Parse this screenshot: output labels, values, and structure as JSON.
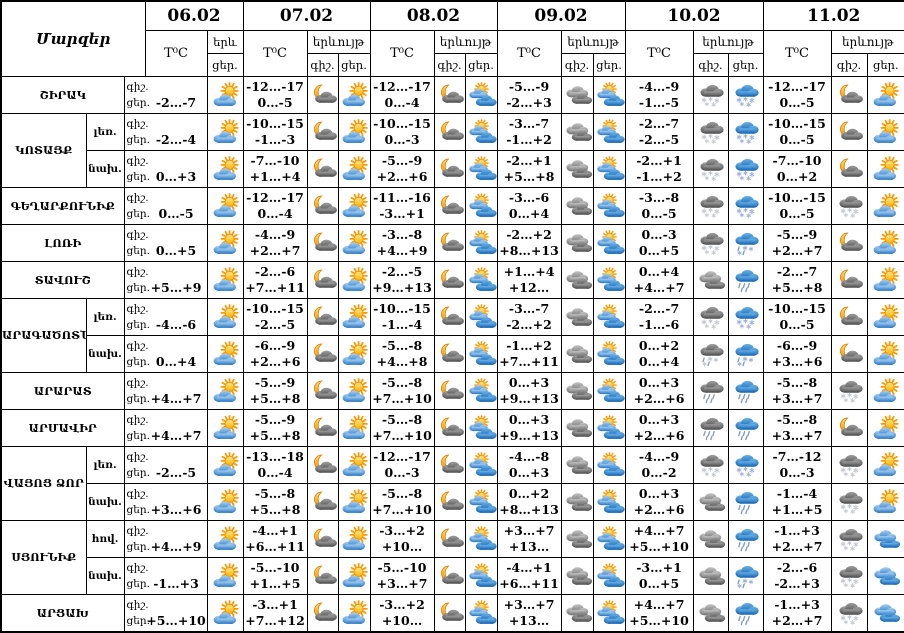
{
  "title": "Մարզեր",
  "header": {
    "temp_label": "T⁰C",
    "phenomenon_label": "երևույթ",
    "phenomenon_short": "երև",
    "night_label": "գիշ.",
    "day_label": "ցեր.",
    "dates": [
      "06.02",
      "07.02",
      "08.02",
      "09.02",
      "10.02",
      "11.02"
    ]
  },
  "colors": {
    "border": "#000000",
    "background": "#ffffff",
    "sun": "#ffb300",
    "moon": "#f29500",
    "day_cloud": "#2573c2",
    "night_cloud": "#474747"
  },
  "icon_types": {
    "sun-cloud": "sun behind blue cloud (partly cloudy day)",
    "sun-clouds": "sun with two blue clouds (mostly cloudy day)",
    "moon-cloud": "crescent moon behind dark cloud (partly cloudy night)",
    "clouds-gray": "overcast gray clouds (night)",
    "clouds-blue": "overcast blue clouds (day)",
    "snow-gray": "gray cloud with snow (night)",
    "snow-blue": "blue cloud with snow (day)",
    "rain-gray": "gray cloud with rain (night)",
    "rain-blue": "blue cloud with rain (day)",
    "sleet-gray": "gray cloud with rain and snow (night)",
    "sleet-blue": "blue cloud with rain and snow (day)"
  },
  "rows": [
    {
      "region": "ՇԻՐԱԿ",
      "sub": null,
      "span": 1,
      "cells": [
        {
          "n": "",
          "d": "-2…-7",
          "ni": null,
          "di": "sun-cloud"
        },
        {
          "n": "-12…-17",
          "d": "0…-5",
          "ni": "moon-cloud",
          "di": "sun-cloud"
        },
        {
          "n": "-12…-17",
          "d": "0…-4",
          "ni": "moon-cloud",
          "di": "sun-clouds"
        },
        {
          "n": "-5…-9",
          "d": "-2…+3",
          "ni": "clouds-gray",
          "di": "sun-clouds"
        },
        {
          "n": "-4…-9",
          "d": "-1…-5",
          "ni": "snow-gray",
          "di": "snow-blue"
        },
        {
          "n": "-12…-17",
          "d": "0…-5",
          "ni": "moon-cloud",
          "di": "sun-cloud"
        }
      ]
    },
    {
      "region": "ԿՈՏԱՅՔ",
      "sub": "լեռ.",
      "span": 2,
      "cells": [
        {
          "n": "",
          "d": "-2…-4",
          "ni": null,
          "di": "sun-cloud"
        },
        {
          "n": "-10…-15",
          "d": "-1…-3",
          "ni": "moon-cloud",
          "di": "sun-cloud"
        },
        {
          "n": "-10…-15",
          "d": "0…-3",
          "ni": "moon-cloud",
          "di": "sun-clouds"
        },
        {
          "n": "-3…-7",
          "d": "-1…+2",
          "ni": "clouds-gray",
          "di": "sun-clouds"
        },
        {
          "n": "-2…-7",
          "d": "-2…-5",
          "ni": "snow-gray",
          "di": "snow-blue"
        },
        {
          "n": "-10…-15",
          "d": "0…-5",
          "ni": "moon-cloud",
          "di": "sun-cloud"
        }
      ]
    },
    {
      "region": null,
      "sub": "նախ.",
      "span": 0,
      "cells": [
        {
          "n": "",
          "d": "0…+3",
          "ni": null,
          "di": "sun-cloud"
        },
        {
          "n": "-7…-10",
          "d": "+1…+4",
          "ni": "moon-cloud",
          "di": "sun-cloud"
        },
        {
          "n": "-5…-9",
          "d": "+2…+6",
          "ni": "moon-cloud",
          "di": "sun-clouds"
        },
        {
          "n": "-2…+1",
          "d": "+5…+8",
          "ni": "clouds-gray",
          "di": "sun-clouds"
        },
        {
          "n": "-2…+1",
          "d": "-1…+2",
          "ni": "snow-gray",
          "di": "snow-blue"
        },
        {
          "n": "-7…-10",
          "d": "0…+2",
          "ni": "moon-cloud",
          "di": "sun-cloud"
        }
      ]
    },
    {
      "region": "ԳԵՂԱՐՔՈՒՆԻՔ",
      "sub": null,
      "span": 1,
      "cells": [
        {
          "n": "",
          "d": "0…-5",
          "ni": null,
          "di": "sun-cloud"
        },
        {
          "n": "-12…-17",
          "d": "0…-4",
          "ni": "moon-cloud",
          "di": "sun-cloud"
        },
        {
          "n": "-11…-16",
          "d": "-3…+1",
          "ni": "moon-cloud",
          "di": "sun-clouds"
        },
        {
          "n": "-3…-6",
          "d": "0…+4",
          "ni": "clouds-gray",
          "di": "sun-clouds"
        },
        {
          "n": "-3…-8",
          "d": "0…-5",
          "ni": "snow-gray",
          "di": "snow-blue"
        },
        {
          "n": "-10…-15",
          "d": "0…-5",
          "ni": "snow-gray",
          "di": "sun-cloud"
        }
      ]
    },
    {
      "region": "ԼՈՌԻ",
      "sub": null,
      "span": 1,
      "cells": [
        {
          "n": "",
          "d": "0…+5",
          "ni": null,
          "di": "sun-cloud"
        },
        {
          "n": "-4…-9",
          "d": "+2…+7",
          "ni": "moon-cloud",
          "di": "sun-cloud"
        },
        {
          "n": "-3…-8",
          "d": "+4…+9",
          "ni": "moon-cloud",
          "di": "sun-clouds"
        },
        {
          "n": "-2…+2",
          "d": "+8…+13",
          "ni": "clouds-gray",
          "di": "sun-clouds"
        },
        {
          "n": "0…-3",
          "d": "0…+5",
          "ni": "snow-gray",
          "di": "sleet-blue"
        },
        {
          "n": "-5…-9",
          "d": "+2…+7",
          "ni": "moon-cloud",
          "di": "sun-cloud"
        }
      ]
    },
    {
      "region": "ՏԱՎՈՒՇ",
      "sub": null,
      "span": 1,
      "cells": [
        {
          "n": "",
          "d": "+5…+9",
          "ni": null,
          "di": "sun-cloud"
        },
        {
          "n": "-2…-6",
          "d": "+7…+11",
          "ni": "moon-cloud",
          "di": "sun-cloud"
        },
        {
          "n": "-2…-5",
          "d": "+9…+13",
          "ni": "moon-cloud",
          "di": "sun-clouds"
        },
        {
          "n": "+1…+4",
          "d": "+12…+15",
          "ni": "clouds-gray",
          "di": "sun-clouds"
        },
        {
          "n": "0…+4",
          "d": "+4…+7",
          "ni": "clouds-gray",
          "di": "rain-blue"
        },
        {
          "n": "-2…-7",
          "d": "+5…+8",
          "ni": "moon-cloud",
          "di": "sun-cloud"
        }
      ]
    },
    {
      "region": "ԱՐԱԳԱԾՈՏՆ",
      "sub": "լեռ.",
      "span": 2,
      "cells": [
        {
          "n": "",
          "d": "-4…-6",
          "ni": null,
          "di": "sun-cloud"
        },
        {
          "n": "-10…-15",
          "d": "-2…-5",
          "ni": "moon-cloud",
          "di": "sun-cloud"
        },
        {
          "n": "-10…-15",
          "d": "-1…-4",
          "ni": "moon-cloud",
          "di": "sun-clouds"
        },
        {
          "n": "-3…-7",
          "d": "-2…+2",
          "ni": "clouds-gray",
          "di": "sun-clouds"
        },
        {
          "n": "-2…-7",
          "d": "-1…-6",
          "ni": "snow-gray",
          "di": "snow-blue"
        },
        {
          "n": "-10…-15",
          "d": "0…-5",
          "ni": "moon-cloud",
          "di": "sun-cloud"
        }
      ]
    },
    {
      "region": null,
      "sub": "նախ.",
      "span": 0,
      "cells": [
        {
          "n": "",
          "d": "0…+4",
          "ni": null,
          "di": "sun-cloud"
        },
        {
          "n": "-6…-9",
          "d": "+2…+6",
          "ni": "moon-cloud",
          "di": "sun-cloud"
        },
        {
          "n": "-5…-8",
          "d": "+4…+8",
          "ni": "moon-cloud",
          "di": "sun-clouds"
        },
        {
          "n": "-1…+2",
          "d": "+7…+11",
          "ni": "clouds-gray",
          "di": "sun-clouds"
        },
        {
          "n": "0…+2",
          "d": "0…+4",
          "ni": "sleet-gray",
          "di": "sleet-blue"
        },
        {
          "n": "-6…-9",
          "d": "+3…+6",
          "ni": "moon-cloud",
          "di": "sun-cloud"
        }
      ]
    },
    {
      "region": "ԱՐԱՐԱՏ",
      "sub": null,
      "span": 1,
      "cells": [
        {
          "n": "",
          "d": "+4…+7",
          "ni": null,
          "di": "sun-cloud"
        },
        {
          "n": "-5…-9",
          "d": "+5…+8",
          "ni": "moon-cloud",
          "di": "sun-cloud"
        },
        {
          "n": "-5…-8",
          "d": "+7…+10",
          "ni": "moon-cloud",
          "di": "sun-clouds"
        },
        {
          "n": "0…+3",
          "d": "+9…+13",
          "ni": "clouds-gray",
          "di": "sun-clouds"
        },
        {
          "n": "0…+3",
          "d": "+2…+6",
          "ni": "rain-gray",
          "di": "rain-blue"
        },
        {
          "n": "-5…-8",
          "d": "+3…+7",
          "ni": "snow-gray",
          "di": "sun-cloud"
        }
      ]
    },
    {
      "region": "ԱՐՄԱՎԻՐ",
      "sub": null,
      "span": 1,
      "cells": [
        {
          "n": "",
          "d": "+4…+7",
          "ni": null,
          "di": "sun-cloud"
        },
        {
          "n": "-5…-9",
          "d": "+5…+8",
          "ni": "moon-cloud",
          "di": "sun-cloud"
        },
        {
          "n": "-5…-8",
          "d": "+7…+10",
          "ni": "moon-cloud",
          "di": "sun-clouds"
        },
        {
          "n": "0…+3",
          "d": "+9…+13",
          "ni": "clouds-gray",
          "di": "sun-clouds"
        },
        {
          "n": "0…+3",
          "d": "+2…+6",
          "ni": "rain-gray",
          "di": "rain-blue"
        },
        {
          "n": "-5…-8",
          "d": "+3…+7",
          "ni": "moon-cloud",
          "di": "sun-cloud"
        }
      ]
    },
    {
      "region": "ՎԱՅՈՑ ՁՈՐ",
      "sub": "լեռ.",
      "span": 2,
      "cells": [
        {
          "n": "",
          "d": "-2…-5",
          "ni": null,
          "di": "sun-cloud"
        },
        {
          "n": "-13…-18",
          "d": "0…-4",
          "ni": "moon-cloud",
          "di": "sun-cloud"
        },
        {
          "n": "-12…-17",
          "d": "0…-3",
          "ni": "moon-cloud",
          "di": "sun-clouds"
        },
        {
          "n": "-4…-8",
          "d": "0…+3",
          "ni": "clouds-gray",
          "di": "sun-clouds"
        },
        {
          "n": "-4…-9",
          "d": "0…-2",
          "ni": "snow-gray",
          "di": "snow-blue"
        },
        {
          "n": "-7…-12",
          "d": "0…-3",
          "ni": "snow-gray",
          "di": "sun-cloud"
        }
      ]
    },
    {
      "region": null,
      "sub": "նախ.",
      "span": 0,
      "cells": [
        {
          "n": "",
          "d": "+3…+6",
          "ni": null,
          "di": "sun-cloud"
        },
        {
          "n": "-5…-8",
          "d": "+5…+8",
          "ni": "moon-cloud",
          "di": "sun-cloud"
        },
        {
          "n": "-5…-8",
          "d": "+7…+10",
          "ni": "moon-cloud",
          "di": "sun-clouds"
        },
        {
          "n": "0…+2",
          "d": "+8…+13",
          "ni": "clouds-gray",
          "di": "sun-clouds"
        },
        {
          "n": "0…+3",
          "d": "+2…+6",
          "ni": "clouds-gray",
          "di": "rain-blue"
        },
        {
          "n": "-1…-4",
          "d": "+1…+5",
          "ni": "snow-gray",
          "di": "sun-cloud"
        }
      ]
    },
    {
      "region": "ՍՅՈՒՆԻՔ",
      "sub": "հով.",
      "span": 2,
      "cells": [
        {
          "n": "",
          "d": "+4…+9",
          "ni": null,
          "di": "sun-cloud"
        },
        {
          "n": "-4…+1",
          "d": "+6…+11",
          "ni": "moon-cloud",
          "di": "sun-cloud"
        },
        {
          "n": "-3…+2",
          "d": "+10…+14",
          "ni": "moon-cloud",
          "di": "sun-clouds"
        },
        {
          "n": "+3…+7",
          "d": "+13…+17",
          "ni": "clouds-gray",
          "di": "sun-clouds"
        },
        {
          "n": "+4…+7",
          "d": "+5…+10",
          "ni": "clouds-gray",
          "di": "rain-blue"
        },
        {
          "n": "-1…+3",
          "d": "+2…+7",
          "ni": "snow-gray",
          "di": "clouds-blue"
        }
      ]
    },
    {
      "region": null,
      "sub": "նախ.",
      "span": 0,
      "cells": [
        {
          "n": "",
          "d": "-1…+3",
          "ni": null,
          "di": "sun-cloud"
        },
        {
          "n": "-5…-10",
          "d": "+1…+5",
          "ni": "moon-cloud",
          "di": "sun-cloud"
        },
        {
          "n": "-5…-10",
          "d": "+3…+7",
          "ni": "moon-cloud",
          "di": "sun-clouds"
        },
        {
          "n": "-4…+1",
          "d": "+6…+11",
          "ni": "clouds-gray",
          "di": "sun-clouds"
        },
        {
          "n": "-3…+1",
          "d": "0…+5",
          "ni": "clouds-gray",
          "di": "sleet-blue"
        },
        {
          "n": "-2…-6",
          "d": "-2…+3",
          "ni": "snow-gray",
          "di": "clouds-blue"
        }
      ]
    },
    {
      "region": "ԱՐՑԱԽ",
      "sub": null,
      "span": 1,
      "cells": [
        {
          "n": "",
          "d": "+5…+10",
          "ni": null,
          "di": "sun-cloud"
        },
        {
          "n": "-3…+1",
          "d": "+7…+12",
          "ni": "moon-cloud",
          "di": "sun-cloud"
        },
        {
          "n": "-3…+2",
          "d": "+10…+14",
          "ni": "moon-cloud",
          "di": "sun-clouds"
        },
        {
          "n": "+3…+7",
          "d": "+13…+17",
          "ni": "clouds-gray",
          "di": "sun-clouds"
        },
        {
          "n": "+4…+7",
          "d": "+5…+10",
          "ni": "clouds-gray",
          "di": "rain-blue"
        },
        {
          "n": "-1…+3",
          "d": "+2…+7",
          "ni": "snow-gray",
          "di": "clouds-blue"
        }
      ]
    }
  ]
}
